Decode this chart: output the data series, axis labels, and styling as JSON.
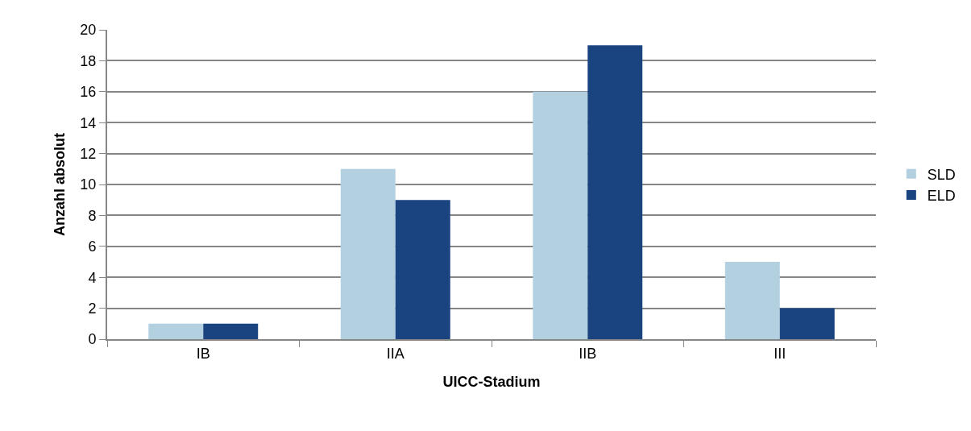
{
  "chart_data": {
    "type": "bar",
    "xlabel": "UICC-Stadium",
    "ylabel": "Anzahl absolut",
    "categories": [
      "IB",
      "IIA",
      "IIB",
      "III"
    ],
    "series": [
      {
        "name": "SLD",
        "color": "#b3d0e1",
        "values": [
          1,
          11,
          16,
          5
        ]
      },
      {
        "name": "ELD",
        "color": "#1a4480",
        "values": [
          1,
          9,
          19,
          2
        ]
      }
    ],
    "ylim": [
      0,
      20
    ],
    "yticks": [
      0,
      2,
      4,
      6,
      8,
      10,
      12,
      14,
      16,
      18,
      20
    ],
    "grid": "y",
    "legend": "right"
  }
}
